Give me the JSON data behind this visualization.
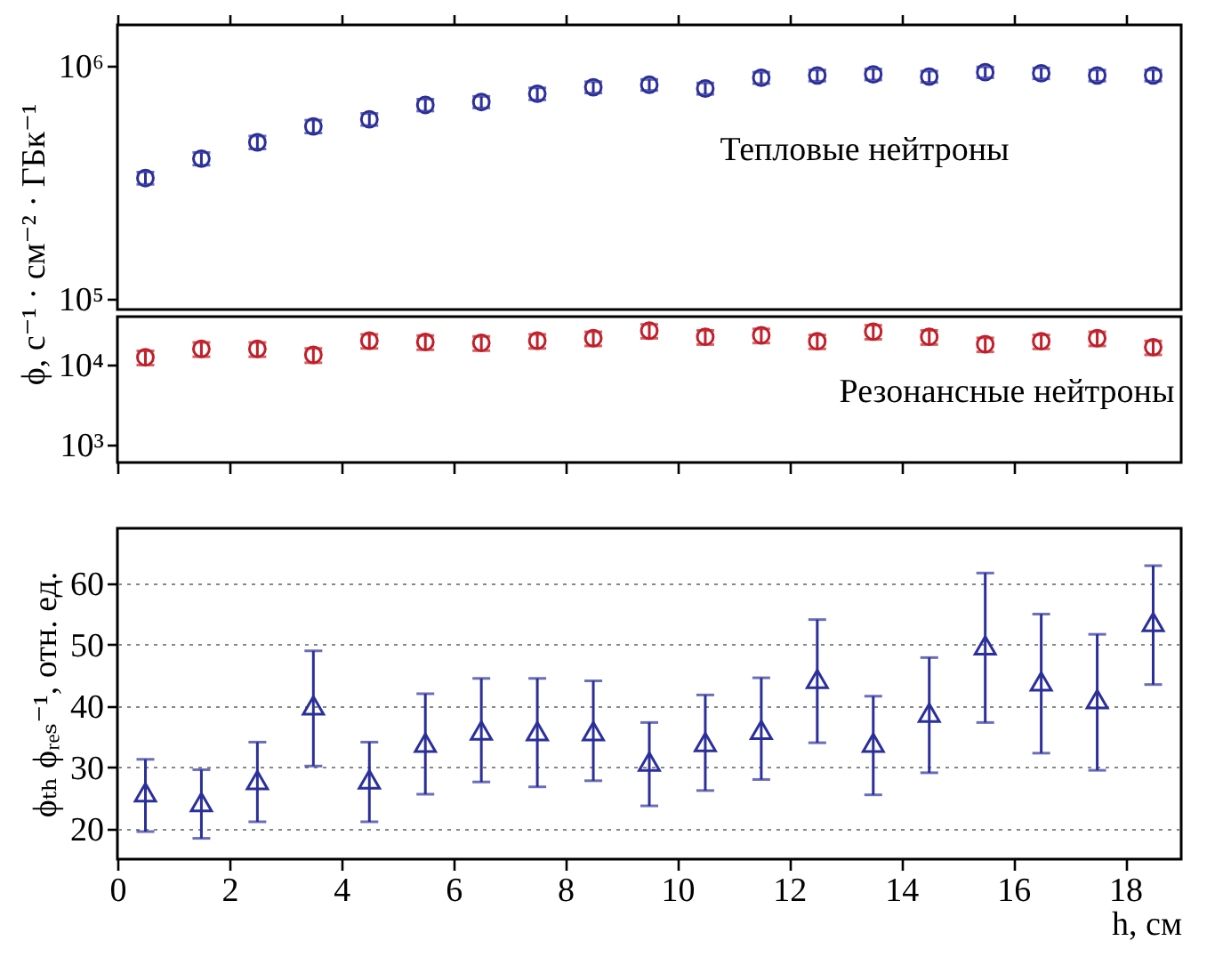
{
  "chart_data": [
    {
      "type": "scatter",
      "ylabel": "ϕ, с⁻¹ · см⁻² · ГБк⁻¹",
      "marker": "circle",
      "log": "y",
      "tick_labels": "y",
      "grid": false,
      "xlim": [
        0,
        19
      ],
      "xticks": [
        0,
        2,
        4,
        6,
        8,
        10,
        12,
        14,
        16,
        18
      ],
      "ylim": [
        90000,
        1500000
      ],
      "yticks": [
        {
          "value": 100000,
          "label": "10⁵"
        },
        {
          "value": 1000000,
          "label": "10⁶"
        }
      ],
      "x": [
        0.5,
        1.5,
        2.5,
        3.5,
        4.5,
        5.5,
        6.5,
        7.5,
        8.5,
        9.5,
        10.5,
        11.5,
        12.5,
        13.5,
        14.5,
        15.5,
        16.5,
        17.5,
        18.5
      ],
      "series": [
        {
          "name": "Тепловые нейтроны",
          "color": "#2b2f9a",
          "values": [
            330000,
            400000,
            470000,
            550000,
            590000,
            680000,
            700000,
            760000,
            810000,
            830000,
            800000,
            890000,
            910000,
            920000,
            900000,
            940000,
            930000,
            910000,
            910000
          ],
          "errors": [
            20000,
            25000,
            30000,
            35000,
            35000,
            40000,
            40000,
            45000,
            45000,
            45000,
            45000,
            50000,
            50000,
            50000,
            50000,
            50000,
            50000,
            50000,
            50000
          ]
        }
      ]
    },
    {
      "type": "scatter",
      "marker": "circle",
      "log": "y",
      "tick_labels": "y",
      "grid": false,
      "xlim": [
        0,
        19
      ],
      "xticks": [
        0,
        2,
        4,
        6,
        8,
        10,
        12,
        14,
        16,
        18
      ],
      "ylim": [
        600,
        40000
      ],
      "yticks": [
        {
          "value": 1000,
          "label": "10³"
        },
        {
          "value": 10000,
          "label": "10⁴"
        }
      ],
      "x": [
        0.5,
        1.5,
        2.5,
        3.5,
        4.5,
        5.5,
        6.5,
        7.5,
        8.5,
        9.5,
        10.5,
        11.5,
        12.5,
        13.5,
        14.5,
        15.5,
        16.5,
        17.5,
        18.5
      ],
      "series": [
        {
          "name": "Резонансные нейтроны",
          "color": "#c0202a",
          "values": [
            12400,
            15800,
            15800,
            13300,
            20000,
            19300,
            18800,
            20000,
            21500,
            26700,
            22400,
            23400,
            19700,
            26000,
            22400,
            18100,
            19700,
            21500,
            16600
          ],
          "errors": [
            2500,
            3200,
            3200,
            2700,
            4000,
            3900,
            3800,
            4000,
            4300,
            5300,
            4500,
            4700,
            3900,
            5200,
            4500,
            3600,
            3900,
            4300,
            3300
          ]
        }
      ]
    },
    {
      "type": "scatter",
      "xlabel": "h, см",
      "ylabel": "ϕₜₕ ϕᵣₑₛ⁻¹, отн. ед.",
      "marker": "triangle",
      "grid": "y",
      "xlim": [
        0,
        19
      ],
      "xticks": [
        0,
        2,
        4,
        6,
        8,
        10,
        12,
        14,
        16,
        18
      ],
      "ylim": [
        15,
        69
      ],
      "yticks": [
        20,
        30,
        40,
        50,
        60
      ],
      "x": [
        0.5,
        1.5,
        2.5,
        3.5,
        4.5,
        5.5,
        6.5,
        7.5,
        8.5,
        9.5,
        10.5,
        11.5,
        12.5,
        13.5,
        14.5,
        15.5,
        16.5,
        17.5,
        18.5
      ],
      "series": [
        {
          "color": "#2b2f9a",
          "values": [
            25.9,
            24.3,
            27.9,
            40.1,
            28,
            34,
            36,
            35.9,
            35.9,
            30.9,
            34.1,
            36.1,
            44.4,
            34,
            38.9,
            49.9,
            44,
            41.1,
            53.7
          ],
          "errors": [
            [
              19.5,
              31.3
            ],
            [
              18.4,
              29.6
            ],
            [
              21.1,
              34.1
            ],
            [
              30.2,
              49
            ],
            [
              21.1,
              34.1
            ],
            [
              25.6,
              42
            ],
            [
              27.6,
              44.5
            ],
            [
              26.8,
              44.5
            ],
            [
              27.8,
              44.1
            ],
            [
              23.7,
              37.3
            ],
            [
              26.2,
              41.8
            ],
            [
              28,
              44.6
            ],
            [
              34,
              54.1
            ],
            [
              25.5,
              41.6
            ],
            [
              29.1,
              47.9
            ],
            [
              37.3,
              61.7
            ],
            [
              32.3,
              55
            ],
            [
              29.5,
              51.7
            ],
            [
              43.5,
              62.9
            ]
          ]
        }
      ]
    }
  ]
}
